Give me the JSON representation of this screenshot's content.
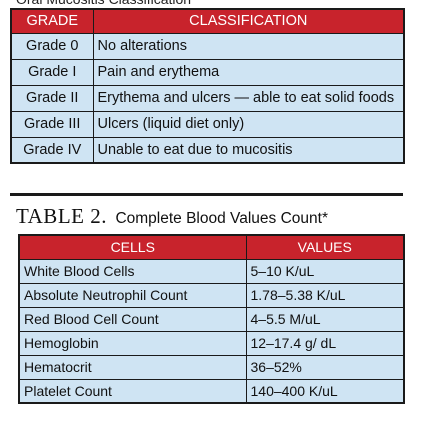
{
  "table1": {
    "columns": [
      "GRADE",
      "CLASSIFICATION"
    ],
    "rows": [
      [
        "Grade 0",
        "No alterations"
      ],
      [
        "Grade I",
        "Pain and erythema"
      ],
      [
        "Grade II",
        "Erythema and ulcers — able to eat solid foods"
      ],
      [
        "Grade III",
        "Ulcers (liquid diet only)"
      ],
      [
        "Grade IV",
        "Unable to eat due to mucositis"
      ]
    ]
  },
  "table2": {
    "label": "TABLE 2.",
    "title": "Complete Blood Values Count*",
    "columns": [
      "CELLS",
      "VALUES"
    ],
    "rows": [
      [
        "White Blood Cells",
        "5–10 K/uL"
      ],
      [
        "Absolute Neutrophil Count",
        "1.78–5.38 K/uL"
      ],
      [
        "Red Blood Cell Count",
        "4–5.5 M/uL"
      ],
      [
        "Hemoglobin",
        "12–17.4 g/ dL"
      ],
      [
        "Hematocrit",
        "36–52%"
      ],
      [
        "Platelet Count",
        "140–400 K/uL"
      ]
    ]
  },
  "colors": {
    "header_red": "#c8232c",
    "cell_blue": "#cfe4f3",
    "border": "#1a1a1a"
  }
}
